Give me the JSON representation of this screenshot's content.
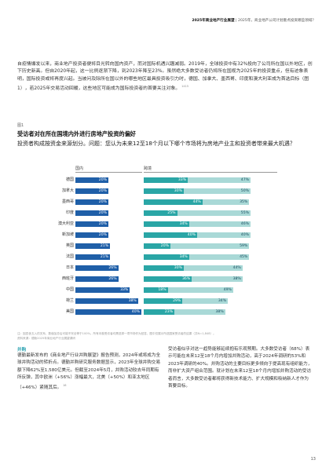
{
  "header": {
    "report_title": "2025年商业地产行业展望",
    "subtitle": "2025年，商业地产公司计划重点投资哪些领域？",
    "separator": " | "
  },
  "intro": {
    "text": "自疫情爆发以来，商业地产投资者便将目光转向国内资产，而对国际机遇兴趣减弱。2019年，全球投资中有32%投向了公司所在国以外地区，创下历史新高。但自2020年起，这一比例逐渐下降，到2023年降至23%。虽然绝大多数受访者仍将所在国视为2025年的投资重点，但有迹象表明，国际投资或将再度兴起。当被问及除所在国以外的哪些地区最具投资吸引力时，德国、加拿大、墨西哥、印度和澳大利亚成为首选目标（图1），若2025年交易活动回暖，这些地区可能成为国际投资者的首要关注对象。",
    "refs": [
      "14",
      "15"
    ]
  },
  "figure": {
    "label": "图1",
    "title": "受访者对在所在国境内外进行房地产投资的偏好",
    "subtitle": "投资者构成按资金来源划分。问题：您认为未来12至18个月以下哪个市场将为房地产业主和投资者带来最大机遇？",
    "col_domestic": "国内",
    "col_international": "跨境",
    "note": "注：因四舍五入的关系，数值加总后可能不完全等于100%。所有问卷受访者均需选择一项市场作为回答，图中仅展示所选国家受访者的结果（共N=1,848）。",
    "source": "资料来源：德勤2025年商业地产行业展望调研"
  },
  "chart_data": {
    "type": "bar",
    "categories": [
      "德国",
      "加拿大",
      "墨西哥",
      "印度",
      "澳大利亚",
      "新加坡",
      "英国",
      "法国",
      "日本",
      "西班牙",
      "中国",
      "荷兰",
      "美国"
    ],
    "series": [
      {
        "name": "国内",
        "values": [
          20,
          20,
          20,
          20,
          20,
          20,
          21,
          21,
          26,
          26,
          33,
          38,
          40
        ]
      },
      {
        "name": "跨境",
        "values": [
          33,
          30,
          44,
          25,
          34,
          40,
          20,
          34,
          30,
          36,
          18,
          29,
          23
        ]
      },
      {
        "name": "",
        "values": [
          47,
          50,
          35,
          55,
          46,
          40,
          59,
          45,
          44,
          38,
          49,
          34,
          38
        ]
      }
    ],
    "xlim": [
      0,
      100
    ],
    "colors": [
      "#1f5fa8",
      "#2aa6a6",
      "#a9d9d7"
    ]
  },
  "body": {
    "section_title": "并购",
    "left_text": "德勤最新发布的《商业地产行业并购展望》报告预测，2024年或将成为全球并购活动的转折点。德勤并购研究服务数据显示，2023年全球并购交易额下降62%至1,580亿美元。但截至2024年5月，并购活动较去年同期有所反弹，其中欧洲（+56%）涨幅最大，北美（+50%）和亚太地区（+46%）紧随其后。",
    "left_ref": "16",
    "right_text": "受访者似乎对这一趋势能够延续抱有乐观预期。大多数受访者（68%）表示可能在未来12至18个月内增加并购活动，高于2024年调研的53%和2023年调研的40%。并购活动的主要目标更多倾向于提高现有组织能力，而非扩大资产组合范围。就计划在未来12至18个月内增加并购活动的受访者而言，大多数受访者都将获得新技术能力、扩大规模和吸纳新人才作为首要目标。"
  },
  "page_number": "13"
}
